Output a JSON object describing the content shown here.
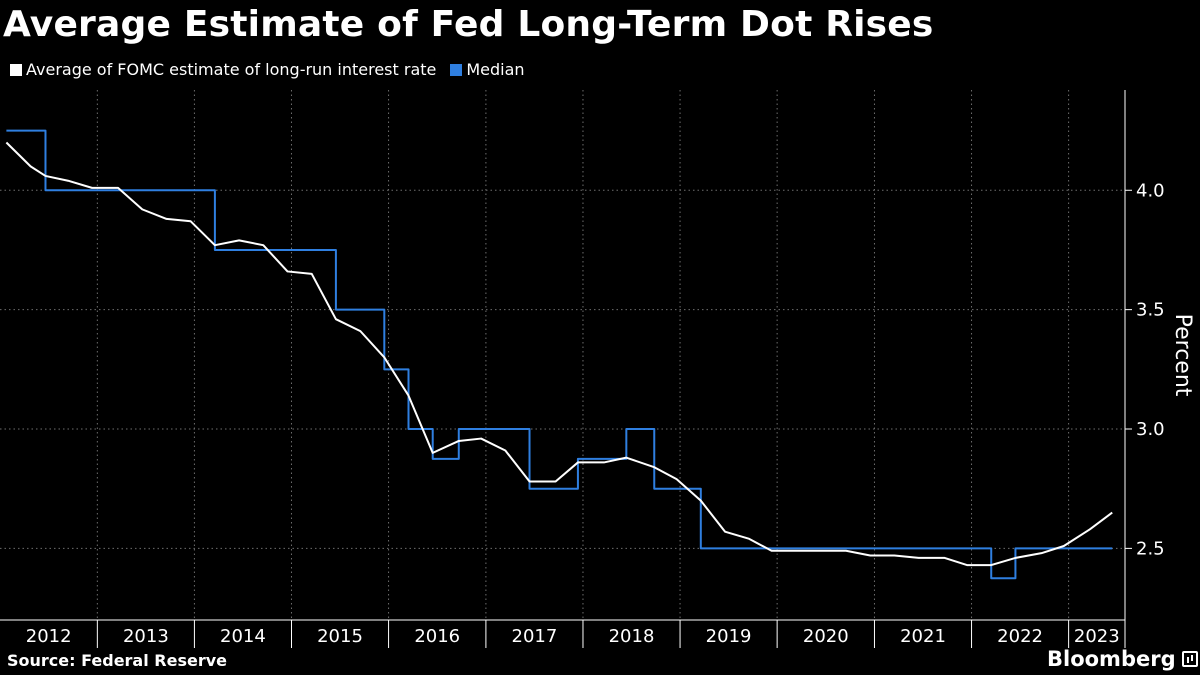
{
  "header": {
    "title": "Average Estimate of Fed Long-Term Dot Rises"
  },
  "footer": {
    "source": "Source: Federal Reserve",
    "brand": "Bloomberg"
  },
  "colors": {
    "background": "#000000",
    "average": "#ffffff",
    "median": "#2f7fe0",
    "grid": "#6e6e6e"
  },
  "chart_data": {
    "type": "line",
    "title": "Average Estimate of Fed Long-Term Dot Rises",
    "ylabel": "Percent",
    "xlabel": "",
    "x_domain": [
      "2012-01-01",
      "2023-08-01"
    ],
    "ylim": [
      2.2,
      4.42
    ],
    "yticks": [
      2.5,
      3.0,
      3.5,
      4.0
    ],
    "ytick_labels": [
      "2.5",
      "3.0",
      "3.5",
      "4.0"
    ],
    "year_ticks": [
      "2012",
      "2013",
      "2014",
      "2015",
      "2016",
      "2017",
      "2018",
      "2019",
      "2020",
      "2021",
      "2022",
      "2023"
    ],
    "grid": "vertical dotted at year boundaries, horizontal dotted at y ticks",
    "legend_position": "top-left",
    "series": [
      {
        "name": "Average of FOMC estimate of long-run interest rate",
        "color": "#ffffff",
        "points": [
          [
            "2012-01-25",
            4.2
          ],
          [
            "2012-04-25",
            4.1
          ],
          [
            "2012-06-20",
            4.06
          ],
          [
            "2012-09-13",
            4.04
          ],
          [
            "2012-12-12",
            4.01
          ],
          [
            "2013-03-20",
            4.01
          ],
          [
            "2013-06-19",
            3.92
          ],
          [
            "2013-09-18",
            3.88
          ],
          [
            "2013-12-18",
            3.87
          ],
          [
            "2014-03-19",
            3.77
          ],
          [
            "2014-06-18",
            3.79
          ],
          [
            "2014-09-17",
            3.77
          ],
          [
            "2014-12-17",
            3.66
          ],
          [
            "2015-03-18",
            3.65
          ],
          [
            "2015-06-17",
            3.46
          ],
          [
            "2015-09-17",
            3.41
          ],
          [
            "2015-12-16",
            3.3
          ],
          [
            "2016-03-16",
            3.14
          ],
          [
            "2016-06-15",
            2.9
          ],
          [
            "2016-09-21",
            2.95
          ],
          [
            "2016-12-14",
            2.96
          ],
          [
            "2017-03-15",
            2.91
          ],
          [
            "2017-06-14",
            2.78
          ],
          [
            "2017-09-20",
            2.78
          ],
          [
            "2017-12-13",
            2.86
          ],
          [
            "2018-03-21",
            2.86
          ],
          [
            "2018-06-13",
            2.88
          ],
          [
            "2018-09-26",
            2.84
          ],
          [
            "2018-12-19",
            2.79
          ],
          [
            "2019-03-20",
            2.7
          ],
          [
            "2019-06-19",
            2.57
          ],
          [
            "2019-09-18",
            2.54
          ],
          [
            "2019-12-11",
            2.49
          ],
          [
            "2020-06-10",
            2.49
          ],
          [
            "2020-09-16",
            2.49
          ],
          [
            "2020-12-16",
            2.47
          ],
          [
            "2021-03-17",
            2.47
          ],
          [
            "2021-06-16",
            2.46
          ],
          [
            "2021-09-22",
            2.46
          ],
          [
            "2021-12-15",
            2.43
          ],
          [
            "2022-03-16",
            2.43
          ],
          [
            "2022-06-15",
            2.46
          ],
          [
            "2022-09-21",
            2.48
          ],
          [
            "2022-12-14",
            2.51
          ],
          [
            "2023-03-22",
            2.58
          ],
          [
            "2023-06-14",
            2.65
          ]
        ]
      },
      {
        "name": "Median",
        "color": "#2f7fe0",
        "step": true,
        "points": [
          [
            "2012-01-25",
            4.25
          ],
          [
            "2012-04-25",
            4.25
          ],
          [
            "2012-06-20",
            4.0
          ],
          [
            "2012-09-13",
            4.0
          ],
          [
            "2012-12-12",
            4.0
          ],
          [
            "2013-03-20",
            4.0
          ],
          [
            "2013-06-19",
            4.0
          ],
          [
            "2013-09-18",
            4.0
          ],
          [
            "2013-12-18",
            4.0
          ],
          [
            "2014-03-19",
            3.75
          ],
          [
            "2014-06-18",
            3.75
          ],
          [
            "2014-09-17",
            3.75
          ],
          [
            "2014-12-17",
            3.75
          ],
          [
            "2015-03-18",
            3.75
          ],
          [
            "2015-06-17",
            3.5
          ],
          [
            "2015-09-17",
            3.5
          ],
          [
            "2015-12-16",
            3.25
          ],
          [
            "2016-03-16",
            3.0
          ],
          [
            "2016-06-15",
            2.875
          ],
          [
            "2016-09-21",
            3.0
          ],
          [
            "2016-12-14",
            3.0
          ],
          [
            "2017-03-15",
            3.0
          ],
          [
            "2017-06-14",
            2.75
          ],
          [
            "2017-09-20",
            2.75
          ],
          [
            "2017-12-13",
            2.875
          ],
          [
            "2018-03-21",
            2.875
          ],
          [
            "2018-06-13",
            3.0
          ],
          [
            "2018-09-26",
            2.75
          ],
          [
            "2018-12-19",
            2.75
          ],
          [
            "2019-03-20",
            2.5
          ],
          [
            "2019-06-19",
            2.5
          ],
          [
            "2019-09-18",
            2.5
          ],
          [
            "2019-12-11",
            2.5
          ],
          [
            "2020-06-10",
            2.5
          ],
          [
            "2020-09-16",
            2.5
          ],
          [
            "2020-12-16",
            2.5
          ],
          [
            "2021-03-17",
            2.5
          ],
          [
            "2021-06-16",
            2.5
          ],
          [
            "2021-09-22",
            2.5
          ],
          [
            "2021-12-15",
            2.5
          ],
          [
            "2022-03-16",
            2.375
          ],
          [
            "2022-06-15",
            2.5
          ],
          [
            "2022-09-21",
            2.5
          ],
          [
            "2022-12-14",
            2.5
          ],
          [
            "2023-03-22",
            2.5
          ],
          [
            "2023-06-14",
            2.5
          ]
        ]
      }
    ]
  }
}
